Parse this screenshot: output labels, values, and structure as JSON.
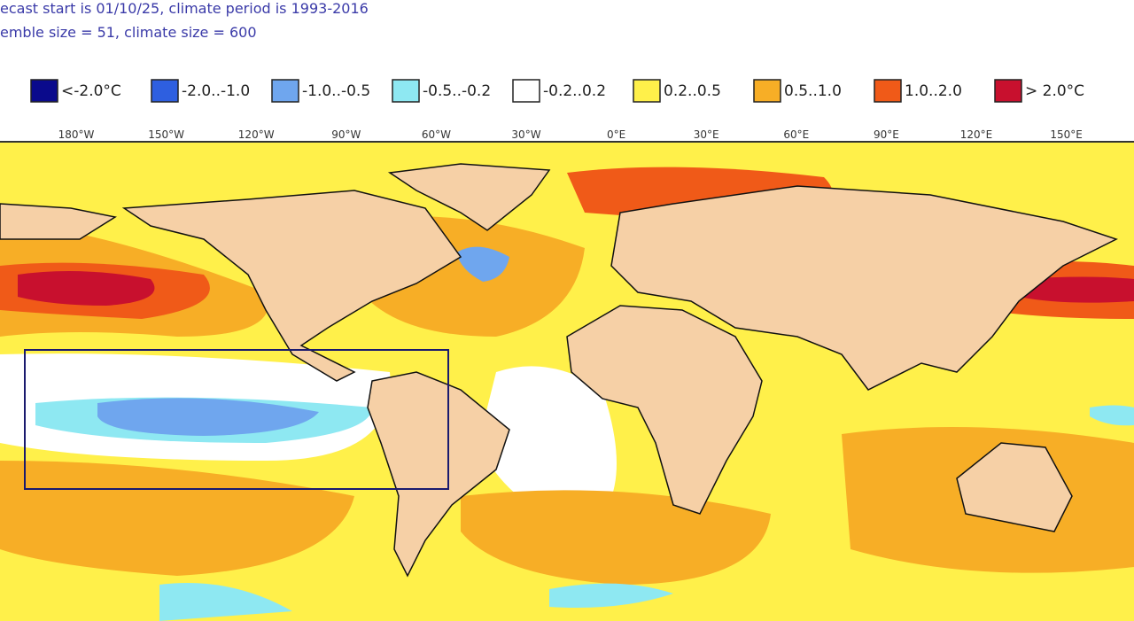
{
  "header": {
    "lines": [
      "ecast start is 01/10/25, climate period is 1993-2016",
      "emble size = 51, climate size = 600"
    ]
  },
  "legend": {
    "items": [
      {
        "label": "<-2.0°C",
        "color": "#0a0a8c"
      },
      {
        "label": "-2.0..-1.0",
        "color": "#2e5fe0"
      },
      {
        "label": "-1.0..-0.5",
        "color": "#6fa6ee"
      },
      {
        "label": "-0.5..-0.2",
        "color": "#8ee8f2"
      },
      {
        "label": "-0.2..0.2",
        "color": "#ffffff"
      },
      {
        "label": "0.2..0.5",
        "color": "#fff04a"
      },
      {
        "label": "0.5..1.0",
        "color": "#f7ae26"
      },
      {
        "label": "1.0..2.0",
        "color": "#f05a18"
      },
      {
        "label": "> 2.0°C",
        "color": "#c8102e"
      }
    ]
  },
  "longitudes": [
    "180°W",
    "150°W",
    "120°W",
    "90°W",
    "60°W",
    "30°W",
    "0°E",
    "30°E",
    "60°E",
    "90°E",
    "120°E",
    "150°E"
  ]
}
